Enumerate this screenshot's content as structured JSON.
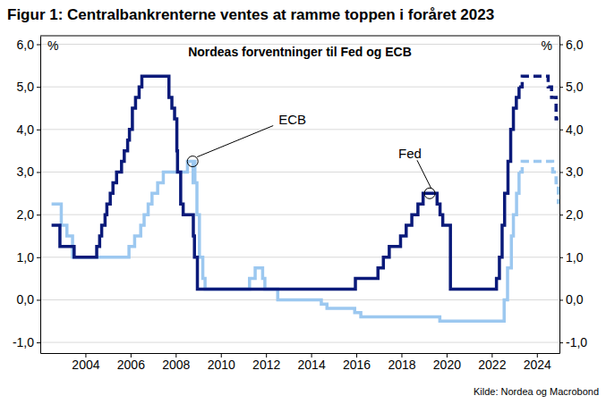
{
  "chart_data": {
    "type": "line",
    "title": "Figur 1: Centralbankrenterne ventes at ramme toppen i foråret 2023",
    "subtitle": "Nordeas forventninger til Fed og ECB",
    "source": "Kilde: Nordea og Macrobond",
    "ylabel": "%",
    "y2label": "%",
    "xlim": [
      2002,
      2025
    ],
    "xticks": [
      2004,
      2006,
      2008,
      2010,
      2012,
      2014,
      2016,
      2018,
      2020,
      2022,
      2024
    ],
    "ylim": [
      -1.25,
      6.2
    ],
    "yticks": [
      {
        "value": -1,
        "label": "-1,0"
      },
      {
        "value": 0,
        "label": "0,0"
      },
      {
        "value": 1,
        "label": "1,0"
      },
      {
        "value": 2,
        "label": "2,0"
      },
      {
        "value": 3,
        "label": "3,0"
      },
      {
        "value": 4,
        "label": "4,0"
      },
      {
        "value": 5,
        "label": "5,0"
      },
      {
        "value": 6,
        "label": "6,0"
      }
    ],
    "y2lim": [
      -1.25,
      6.2
    ],
    "y2ticks": [
      {
        "value": -1,
        "label": "-1,0"
      },
      {
        "value": 0,
        "label": "0,0"
      },
      {
        "value": 1,
        "label": "1,0"
      },
      {
        "value": 2,
        "label": "2,0"
      },
      {
        "value": 3,
        "label": "3,0"
      },
      {
        "value": 4,
        "label": "4,0"
      },
      {
        "value": 5,
        "label": "5,0"
      },
      {
        "value": 6,
        "label": "6,0"
      }
    ],
    "grid": true,
    "series": [
      {
        "name": "ECB",
        "color": "#9cc8f0",
        "line_style": "solid",
        "x": [
          2002.5,
          2002.93,
          2003.18,
          2003.43,
          2005.93,
          2006.18,
          2006.45,
          2006.6,
          2006.78,
          2006.95,
          2007.2,
          2007.45,
          2008.52,
          2008.77,
          2008.8,
          2008.85,
          2008.94,
          2009.05,
          2009.2,
          2009.3,
          2011.27,
          2011.52,
          2011.85,
          2011.95,
          2012.52,
          2014.45,
          2014.7,
          2015.93,
          2016.2,
          2019.7,
          2022.55,
          2022.7,
          2022.87,
          2022.96,
          2023.1,
          2023.21
        ],
        "values": [
          2.25,
          1.75,
          1.5,
          1.0,
          1.25,
          1.5,
          1.75,
          2.0,
          2.25,
          2.5,
          2.75,
          3.0,
          3.25,
          2.75,
          3.25,
          2.75,
          2.0,
          1.0,
          0.5,
          0.25,
          0.5,
          0.75,
          0.5,
          0.25,
          0.0,
          -0.1,
          -0.2,
          -0.3,
          -0.4,
          -0.5,
          0.0,
          0.75,
          1.5,
          2.0,
          2.5,
          3.0
        ]
      },
      {
        "name": "ECB",
        "color": "#9cc8f0",
        "line_style": "dashed",
        "x": [
          2023.21,
          2023.35,
          2024.7,
          2024.85,
          2024.95
        ],
        "values": [
          3.0,
          3.25,
          3.0,
          2.75,
          2.25
        ]
      },
      {
        "name": "Fed",
        "color": "#0a1a7a",
        "line_style": "solid",
        "x": [
          2002.5,
          2002.87,
          2003.5,
          2004.5,
          2004.63,
          2004.72,
          2004.87,
          2004.95,
          2005.1,
          2005.22,
          2005.38,
          2005.6,
          2005.72,
          2005.87,
          2005.95,
          2006.08,
          2006.22,
          2006.38,
          2006.5,
          2007.7,
          2007.83,
          2007.95,
          2008.05,
          2008.08,
          2008.22,
          2008.33,
          2008.78,
          2008.83,
          2008.96,
          2015.96,
          2016.96,
          2017.2,
          2017.46,
          2017.96,
          2018.21,
          2018.46,
          2018.73,
          2018.96,
          2019.58,
          2019.71,
          2019.83,
          2020.17,
          2022.21,
          2022.34,
          2022.46,
          2022.57,
          2022.72,
          2022.84,
          2022.96,
          2023.09,
          2023.21
        ],
        "values": [
          1.75,
          1.25,
          1.0,
          1.25,
          1.5,
          1.75,
          2.0,
          2.25,
          2.5,
          2.75,
          3.0,
          3.25,
          3.5,
          3.75,
          4.0,
          4.5,
          4.75,
          5.0,
          5.25,
          4.75,
          4.5,
          4.25,
          3.5,
          3.0,
          2.25,
          2.0,
          1.5,
          1.0,
          0.25,
          0.5,
          0.75,
          1.0,
          1.25,
          1.5,
          1.75,
          2.0,
          2.25,
          2.5,
          2.25,
          2.0,
          1.75,
          0.25,
          0.5,
          1.0,
          1.75,
          2.5,
          3.25,
          4.0,
          4.5,
          4.75,
          5.0
        ]
      },
      {
        "name": "Fed",
        "color": "#0a1a7a",
        "line_style": "dashed",
        "x": [
          2023.21,
          2023.35,
          2024.5,
          2024.65,
          2024.85,
          2024.95
        ],
        "values": [
          5.0,
          5.25,
          5.0,
          4.75,
          4.25,
          4.25
        ]
      }
    ],
    "annotations": [
      {
        "text": "ECB",
        "x": 2008.75,
        "y": 3.25
      },
      {
        "text": "Fed",
        "x": 2019.25,
        "y": 2.5
      }
    ]
  }
}
